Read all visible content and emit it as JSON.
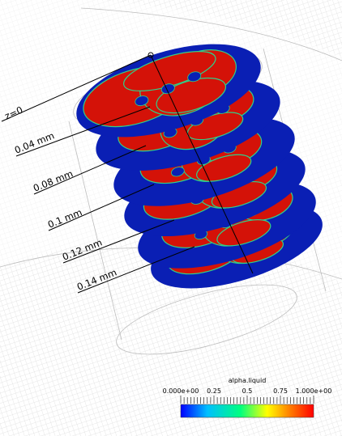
{
  "slice_labels": [
    "z=0",
    "0.04 mm",
    "0.08 mm",
    "0.1 mm",
    "0.12 mm",
    "0.14 mm"
  ],
  "colorbar": {
    "title": "alpha.liquid",
    "tick_labels": [
      "0.000e+00",
      "0.25",
      "0.5",
      "0.75",
      "1.000e+00"
    ],
    "range": [
      0,
      1
    ],
    "colormap_stops": [
      "#0000ff",
      "#00bfff",
      "#00ff7f",
      "#ffff00",
      "#ff7f00",
      "#ff0000"
    ]
  },
  "colors": {
    "liquid": "#d41208",
    "gas": "#0a1fb4",
    "interface": "#2fd08a",
    "wireframe": "#c8c8c8",
    "axis_line": "#000000"
  }
}
